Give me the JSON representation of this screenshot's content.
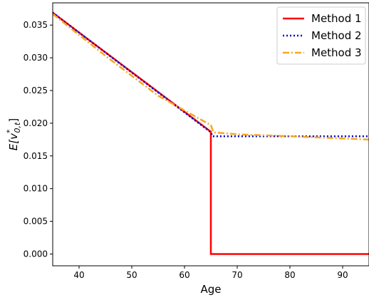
{
  "chart_data": {
    "type": "line",
    "xlabel": "Age",
    "ylabel": "E[v*_{0,t}]",
    "xlim": [
      35,
      95
    ],
    "ylim": [
      -0.0018,
      0.0384
    ],
    "xticks": [
      40,
      50,
      60,
      70,
      80,
      90
    ],
    "yticks": [
      0.0,
      0.005,
      0.01,
      0.015,
      0.02,
      0.025,
      0.03,
      0.035
    ],
    "ytick_labels": [
      "0.000",
      "0.005",
      "0.010",
      "0.015",
      "0.020",
      "0.025",
      "0.030",
      "0.035"
    ],
    "grid": false,
    "legend_position": "top-right",
    "series": [
      {
        "name": "Method 1",
        "color": "#ff0000",
        "style": "solid",
        "points": [
          [
            35,
            0.0369
          ],
          [
            65,
            0.0187
          ],
          [
            65,
            0.0
          ],
          [
            95,
            0.0
          ]
        ]
      },
      {
        "name": "Method 2",
        "color": "#0000cc",
        "style": "dotted",
        "points": [
          [
            35,
            0.0369
          ],
          [
            65,
            0.0186
          ],
          [
            65.3,
            0.018
          ],
          [
            95,
            0.018
          ]
        ]
      },
      {
        "name": "Method 3",
        "color": "#f5a623",
        "style": "dashdot",
        "points": [
          [
            35,
            0.0367
          ],
          [
            45,
            0.0303
          ],
          [
            55,
            0.0242
          ],
          [
            65,
            0.0197
          ],
          [
            65.5,
            0.0186
          ],
          [
            70,
            0.0183
          ],
          [
            80,
            0.018
          ],
          [
            95,
            0.0175
          ]
        ]
      }
    ]
  }
}
